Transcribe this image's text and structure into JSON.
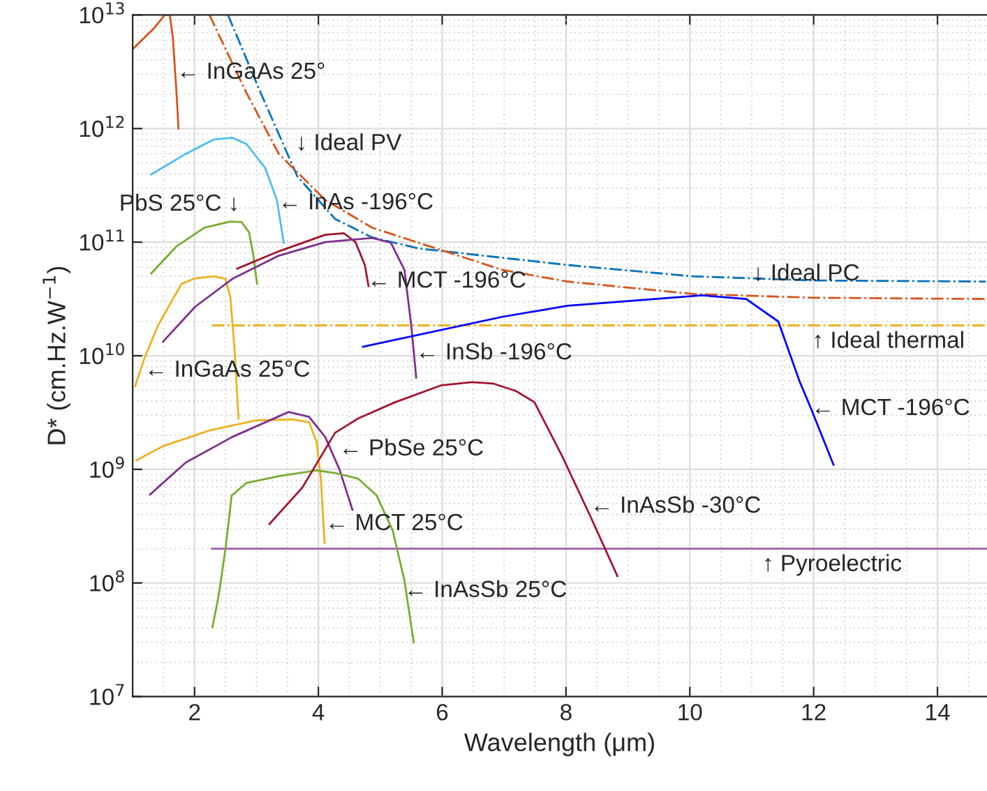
{
  "chart_data": {
    "type": "line",
    "xlabel": "Wavelength (μm)",
    "ylabel": "D* (cm.Hz.W$^{−1}$)",
    "log": "y",
    "grid": true,
    "xlim": [
      1,
      14.8
    ],
    "xticks": [
      2,
      4,
      6,
      8,
      10,
      12,
      14
    ],
    "ylim": [
      10000000.0,
      10000000000000.0
    ],
    "yticks": [
      {
        "value": 10000000.0,
        "label": "10$^{7}$"
      },
      {
        "value": 100000000.0,
        "label": "10$^{8}$"
      },
      {
        "value": 1000000000.0,
        "label": "10$^{9}$"
      },
      {
        "value": 10000000000.0,
        "label": "10$^{10}$"
      },
      {
        "value": 100000000000.0,
        "label": "10$^{11}$"
      },
      {
        "value": 1000000000000.0,
        "label": "10$^{12}$"
      },
      {
        "value": 10000000000000.0,
        "label": "10$^{13}$"
      }
    ],
    "series": [
      {
        "color": "#d95319",
        "x": [
          1.0,
          1.35,
          1.52,
          1.6,
          1.65,
          1.71,
          1.74
        ],
        "values": [
          5000000000000.0,
          7700000000000.0,
          10000000000000.0,
          10000000000000.0,
          6300000000000.0,
          2000000000000.0,
          1000000000000.0
        ]
      },
      {
        "color": "#0072bd",
        "line_style": "dashdot",
        "x": [
          2.54,
          3.07,
          3.66,
          4.27,
          4.87,
          5.62,
          8.02,
          10.05,
          11.99,
          14.78
        ],
        "values": [
          10000000000000.0,
          2050000000000.0,
          380000000000.0,
          160000000000.0,
          110000000000.0,
          88000000000.0,
          63000000000.0,
          50000000000.0,
          46000000000.0,
          45000000000.0
        ]
      },
      {
        "color": "#d95319",
        "line_style": "dashdot",
        "x": [
          2.24,
          2.84,
          3.36,
          4.11,
          4.87,
          6.97,
          8.02,
          10.05,
          12.0,
          14.78
        ],
        "values": [
          10000000000000.0,
          2050000000000.0,
          600000000000.0,
          235000000000.0,
          134000000000.0,
          57000000000.0,
          45000000000.0,
          35000000000.0,
          32400000000.0,
          31600000000.0
        ]
      },
      {
        "color": "#edb120",
        "line_style": "dashdot",
        "x": [
          2.28,
          14.8
        ],
        "values": [
          18500000000.0,
          18500000000.0
        ]
      },
      {
        "color": "#9e5fa8",
        "x": [
          2.28,
          14.8
        ],
        "values": [
          200000000.0,
          200000000.0
        ]
      },
      {
        "color": "#4dbeee",
        "x": [
          1.3,
          1.86,
          2.31,
          2.61,
          2.84,
          3.14,
          3.33,
          3.44
        ],
        "values": [
          395000000000.0,
          600000000000.0,
          800000000000.0,
          830000000000.0,
          730000000000.0,
          450000000000.0,
          235000000000.0,
          99000000000.0
        ]
      },
      {
        "color": "#77ac30",
        "x": [
          1.3,
          1.71,
          2.16,
          2.58,
          2.76,
          2.88,
          2.95,
          3.01
        ],
        "values": [
          53000000000.0,
          92000000000.0,
          134000000000.0,
          152000000000.0,
          150000000000.0,
          122000000000.0,
          76000000000.0,
          43000000000.0
        ]
      },
      {
        "color": "#edb120",
        "x": [
          1.04,
          1.19,
          1.41,
          1.79,
          2.01,
          2.31,
          2.5,
          2.58,
          2.65,
          2.71
        ],
        "values": [
          5400000000.0,
          9500000000.0,
          18500000000.0,
          43000000000.0,
          48000000000.0,
          50000000000.0,
          47500000000.0,
          32400000000.0,
          10500000000.0,
          2800000000.0
        ]
      },
      {
        "color": "#a2142f",
        "x": [
          2.69,
          3.36,
          4.11,
          4.41,
          4.6,
          4.75,
          4.81
        ],
        "values": [
          58500000000.0,
          83000000000.0,
          116000000000.0,
          120000000000.0,
          100000000000.0,
          63000000000.0,
          41000000000.0
        ]
      },
      {
        "color": "#7e2f8e",
        "x": [
          1.49,
          2.01,
          2.61,
          3.36,
          4.11,
          4.87,
          5.17,
          5.39,
          5.5,
          5.58
        ],
        "values": [
          13300000000.0,
          27000000000.0,
          47500000000.0,
          76000000000.0,
          100000000000.0,
          109000000000.0,
          99000000000.0,
          57000000000.0,
          18500000000.0,
          6400000000.0
        ]
      },
      {
        "color": "#0000ff",
        "x": [
          4.72,
          6.97,
          8.02,
          10.2,
          10.91,
          11.43,
          11.77,
          11.96,
          12.32
        ],
        "values": [
          12000000000.0,
          22000000000.0,
          27500000000.0,
          34000000000.0,
          31600000000.0,
          20000000000.0,
          6000000000.0,
          3400000000.0,
          1100000000.0
        ]
      },
      {
        "color": "#edb120",
        "x": [
          1.06,
          1.49,
          2.24,
          2.99,
          3.59,
          3.85,
          3.97,
          4.04,
          4.1
        ],
        "values": [
          1200000000.0,
          1600000000.0,
          2200000000.0,
          2700000000.0,
          2750000000.0,
          2600000000.0,
          1750000000.0,
          830000000.0,
          225000000.0
        ]
      },
      {
        "color": "#7e2f8e",
        "x": [
          1.28,
          1.86,
          2.61,
          3.52,
          3.85,
          4.11,
          4.34,
          4.55
        ],
        "values": [
          600000000.0,
          1150000000.0,
          1930000000.0,
          3200000000.0,
          2900000000.0,
          1930000000.0,
          1000000000.0,
          440000000.0
        ]
      },
      {
        "color": "#77ac30",
        "x": [
          2.29,
          2.39,
          2.5,
          2.6,
          2.84,
          3.36,
          3.97,
          4.27,
          4.64,
          4.94,
          5.2,
          5.39,
          5.54
        ],
        "values": [
          41000000.0,
          78000000.0,
          200000000.0,
          590000000.0,
          760000000.0,
          870000000.0,
          980000000.0,
          930000000.0,
          830000000.0,
          590000000.0,
          290000000.0,
          105000000.0,
          30000000.0
        ]
      },
      {
        "color": "#a2142f",
        "x": [
          3.21,
          3.74,
          4.27,
          4.64,
          5.24,
          5.99,
          6.48,
          6.82,
          7.19,
          7.49,
          7.94,
          8.39,
          8.83
        ],
        "values": [
          330000000.0,
          690000000.0,
          2100000000.0,
          2800000000.0,
          3900000000.0,
          5500000000.0,
          5850000000.0,
          5700000000.0,
          4900000000.0,
          3900000000.0,
          1300000000.0,
          390000000.0,
          115000000.0
        ]
      }
    ],
    "annotations": [
      {
        "text": "← InGaAs 25°",
        "x": 1.71,
        "y": 3100000000000.0
      },
      "↓ Ideal PV",
      "PbS 25°C ↓",
      {
        "text": "← InAs -196°C",
        "x": 3.35,
        "y": 220000000000.0
      },
      {
        "text": "← MCT -196°C",
        "x": 4.79,
        "y": 45000000000.0
      },
      {
        "text": "← InSb -196°C",
        "x": 5.57,
        "y": 10500000000.0
      },
      {
        "text": "← InGaAs 25°C",
        "x": 1.19,
        "y": 7400000000.0
      },
      {
        "text": "↓ Ideal PC",
        "x": 11.01,
        "y": 52000000000.0
      },
      "↑ Ideal thermal",
      {
        "text": "← MCT -196°C",
        "x": 11.96,
        "y": 3400000000.0
      },
      {
        "text": "← PbSe 25°C",
        "x": 4.33,
        "y": 1500000000.0
      },
      {
        "text": "← InAsSb -30°C",
        "x": 8.39,
        "y": 470000000.0
      },
      {
        "text": "← MCT 25°C",
        "x": 4.11,
        "y": 330000000.0
      },
      "↑ Pyroelectric",
      {
        "text": "← InAsSb 25°C",
        "x": 5.38,
        "y": 85000000.0
      }
    ]
  }
}
